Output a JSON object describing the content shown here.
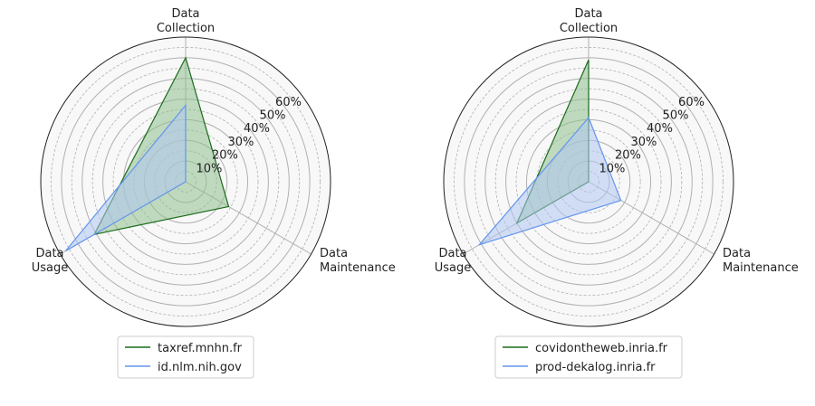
{
  "chart_data": [
    {
      "type": "radar",
      "axes": [
        "Data\nCollection",
        "Data\nMaintenance",
        "Data\nUsage"
      ],
      "r_ticks": [
        "10%",
        "20%",
        "30%",
        "40%",
        "50%",
        "60%"
      ],
      "r_max": 70,
      "grid": true,
      "legend_position": "bottom",
      "series": [
        {
          "name": "taxref.mnhn.fr",
          "values": [
            60,
            24,
            51
          ],
          "color": "#1a6b1a",
          "fill": "#8fbf8f"
        },
        {
          "name": "id.nlm.nih.gov",
          "values": [
            37,
            0,
            67
          ],
          "color": "#6495ED",
          "fill": "#aec6f0"
        }
      ]
    },
    {
      "type": "radar",
      "axes": [
        "Data\nCollection",
        "Data\nMaintenance",
        "Data\nUsage"
      ],
      "r_ticks": [
        "10%",
        "20%",
        "30%",
        "40%",
        "50%",
        "60%"
      ],
      "r_max": 70,
      "grid": true,
      "legend_position": "bottom",
      "series": [
        {
          "name": "covidontheweb.inria.fr",
          "values": [
            59,
            0,
            40
          ],
          "color": "#1a6b1a",
          "fill": "#8fbf8f"
        },
        {
          "name": "prod-dekalog.inria.fr",
          "values": [
            31,
            18,
            61
          ],
          "color": "#6495ED",
          "fill": "#aec6f0"
        }
      ]
    }
  ]
}
